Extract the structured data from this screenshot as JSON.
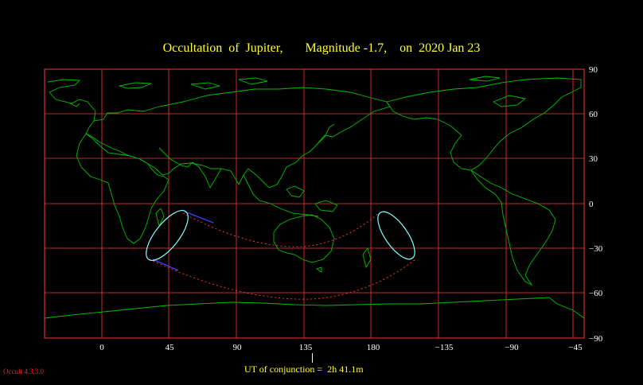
{
  "title": "Occultation  of  Jupiter,       Magnitude -1.7,    on  2020 Jan 23",
  "conjunction_text": "UT of conjunction =  2h 41.1m",
  "version": "Occult 4.3.3.0",
  "lat_labels": [
    "90",
    "60",
    "30",
    "0",
    "−30",
    "−60",
    "−90"
  ],
  "lon_labels": [
    "0",
    "45",
    "90",
    "135",
    "180",
    "−135",
    "−90",
    "−45"
  ],
  "colors": {
    "grid": "#ff3333",
    "coast": "#00c000",
    "occultation_curve": "#80ffff",
    "path_dotted": "#ff3030",
    "path_solid": "#4040ff",
    "title": "#ffff33"
  }
}
